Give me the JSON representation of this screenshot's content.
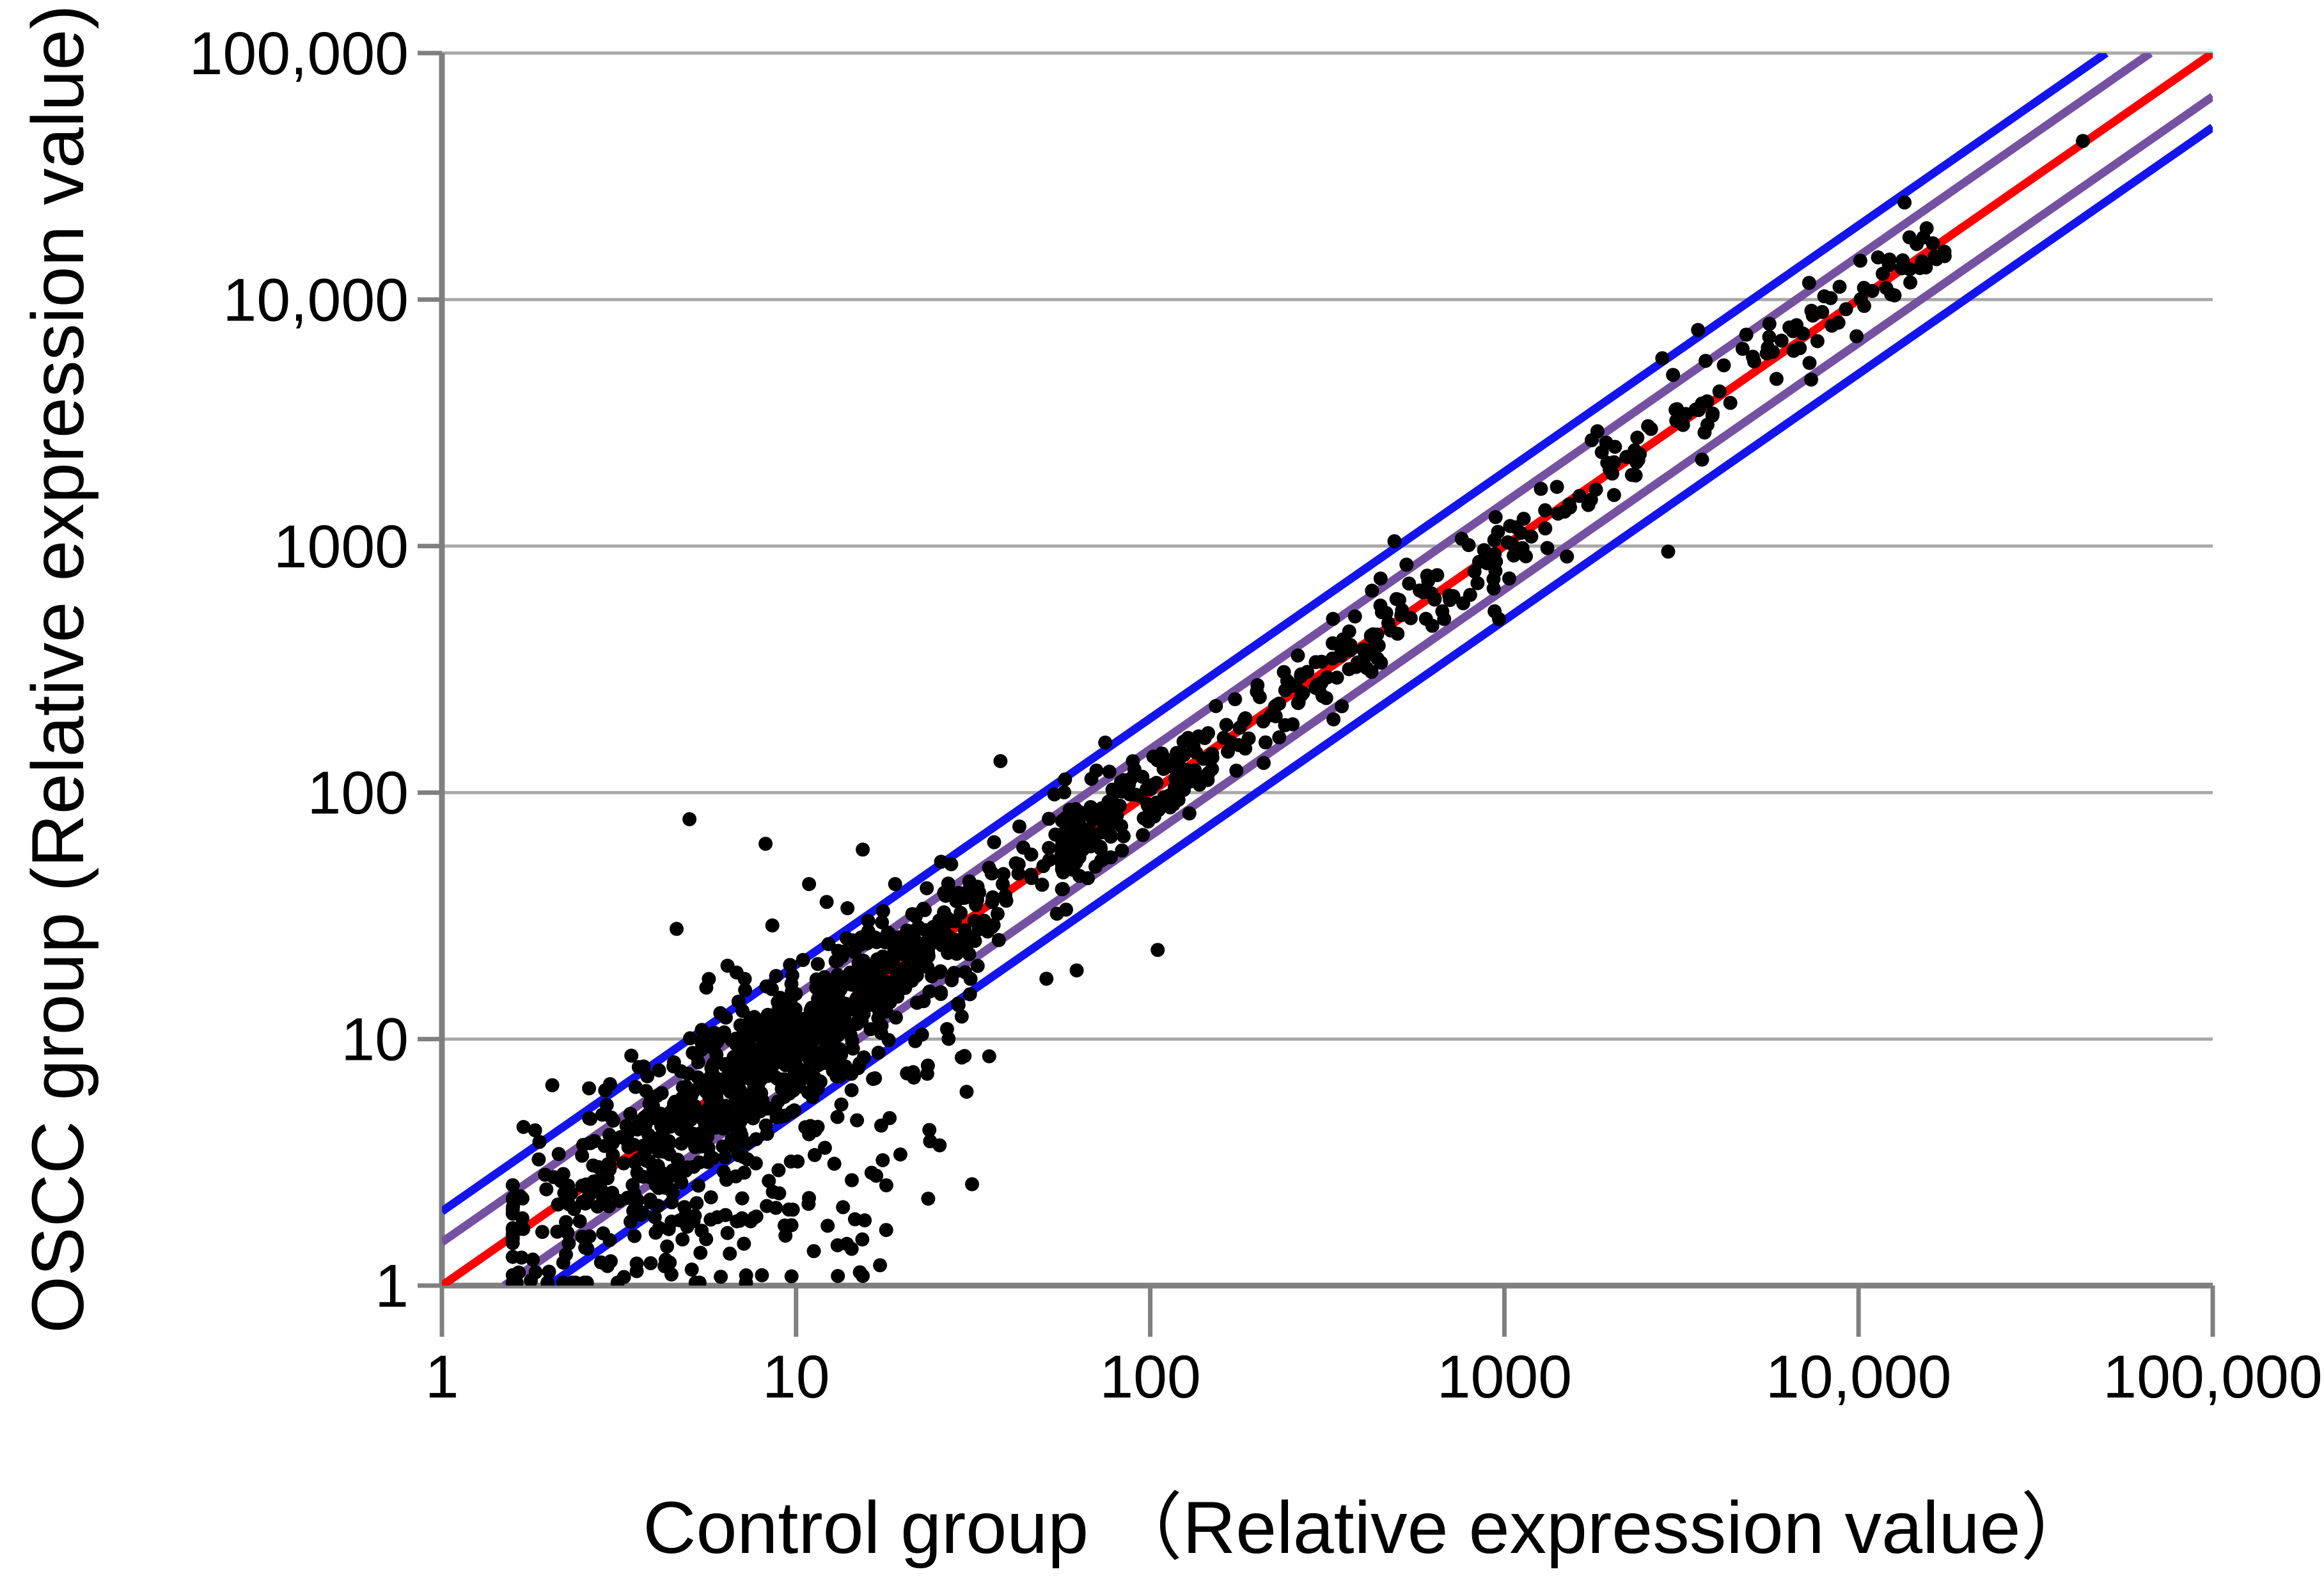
{
  "page": {
    "background": "#ffffff",
    "description": "Log-log scatter plot comparing gene relative expression values of OSCC group versus Control group, with identity line and 1.5-fold / 2-fold change boundary lines. No chart title, no legend."
  },
  "chart_data": {
    "type": "scatter",
    "title": "",
    "xlabel": "Control group （Relative expression value）",
    "ylabel": "OSCC group (Relative expression value)",
    "x_scale": "log10",
    "y_scale": "log10",
    "x_range": [
      1,
      100000
    ],
    "y_range": [
      1,
      100000
    ],
    "tick_values": [
      1,
      10,
      100,
      1000,
      10000,
      100000
    ],
    "x_tick_labels": [
      "1",
      "10",
      "100",
      "1000",
      "10,000",
      "100,000"
    ],
    "y_tick_labels": [
      "1",
      "10",
      "100",
      "1000",
      "10,000",
      "100,000"
    ],
    "grid": {
      "horizontal": true,
      "vertical": false
    },
    "legend": "none",
    "colors": {
      "background": "#ffffff",
      "gridline": "#A8A8A8",
      "axis": "#7F7F7F",
      "point": "#000000",
      "identity_line": "#FF0000",
      "fold_1_5_line": "#7551A2",
      "fold_2_line": "#1414EE",
      "text": "#000000"
    },
    "point_radius": 11,
    "line_width": 13,
    "reference_lines": [
      {
        "name": "identity-line",
        "equation": "y = x",
        "factor": 1,
        "color": "#FF0000",
        "sides": "center"
      },
      {
        "name": "fold-1.5x-lines",
        "equation": "y = 1.5x and y = x/1.5",
        "factor": 1.5,
        "color": "#7551A2",
        "sides": "both"
      },
      {
        "name": "fold-2x-lines",
        "equation": "y = 2x and y = x/2",
        "factor": 2,
        "color": "#1414EE",
        "sides": "both"
      }
    ],
    "series": [
      {
        "name": "genes",
        "marker": "black filled circle",
        "n_points_approx": 1500,
        "pattern": "Dense cloud of points between x=2 and x=60 centered near (8,8) with under-expressed tail scattered down to y=1 for x=4..20; tight diagonal band along y=x from x=60 to x=20000 mostly inside the 1.5-fold lines; sparse isolated points up to (43000,44000)."
      }
    ],
    "scatter_model": {
      "seed": 20240117,
      "note": "Deterministic seeded model (log10-space) reproducing the visible point distribution; u=log10(x), v=log10(y).",
      "components": [
        {
          "kind": "low-cloud",
          "n": 980,
          "u_mean": 0.95,
          "u_sd": 0.34,
          "u_min": 0.2,
          "u_max": 1.8,
          "v_sd": 0.17,
          "v_sd_taper": 0.35,
          "down_prob": 0.12,
          "down_scale": 0.28,
          "up_prob": 0.055,
          "up_scale": 0.2
        },
        {
          "kind": "diagonal-band",
          "n": 440,
          "u_min": 1.75,
          "u_max": 4.25,
          "u_pow": 2.0,
          "v_sd": 0.08,
          "wide_prob": 0.08,
          "wide_sd": 0.18,
          "v_clamp": 0.33
        },
        {
          "kind": "under-expressed-tail",
          "n": 70,
          "u_mean": 1.05,
          "u_sd": 0.3,
          "u_min": 0.55,
          "u_max": 1.95,
          "v_min": 0.03,
          "v_gap": 0.45
        }
      ],
      "explicit_points": [
        [
          5,
          78
        ],
        [
          8.2,
          62
        ],
        [
          12.2,
          36
        ],
        [
          4.6,
          28
        ],
        [
          43000,
          44000
        ],
        [
          2900,
          950
        ],
        [
          105,
          23
        ],
        [
          1.7,
          4.4
        ],
        [
          2.05,
          6.5
        ],
        [
          62,
          19
        ],
        [
          17500,
          15000
        ],
        [
          1050,
          1020
        ]
      ]
    }
  }
}
